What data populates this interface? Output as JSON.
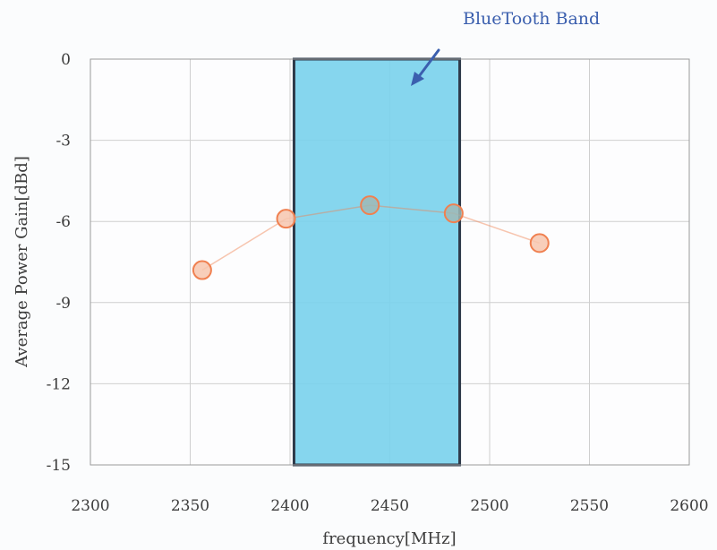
{
  "chart_data": {
    "type": "scatter",
    "xlabel": "frequency[MHz]",
    "ylabel": "Average Power Gain[dBd]",
    "xlim": [
      2300,
      2600
    ],
    "ylim": [
      -15,
      0
    ],
    "xticks": [
      "2300",
      "2350",
      "2400",
      "2450",
      "2500",
      "2550",
      "2600"
    ],
    "yticks": [
      "0",
      "-3",
      "-6",
      "-9",
      "-12",
      "-15"
    ],
    "grid": true,
    "series": [
      {
        "x": [
          2356,
          2398,
          2440,
          2482,
          2525
        ],
        "y": [
          -7.8,
          -5.9,
          -5.4,
          -5.7,
          -6.8
        ],
        "color": "#f08050"
      }
    ],
    "band": {
      "x0": 2402,
      "x1": 2485,
      "color": "#79d1ec"
    },
    "annotation": {
      "text": "BlueTooth Band",
      "color": "#3b5fae"
    }
  }
}
